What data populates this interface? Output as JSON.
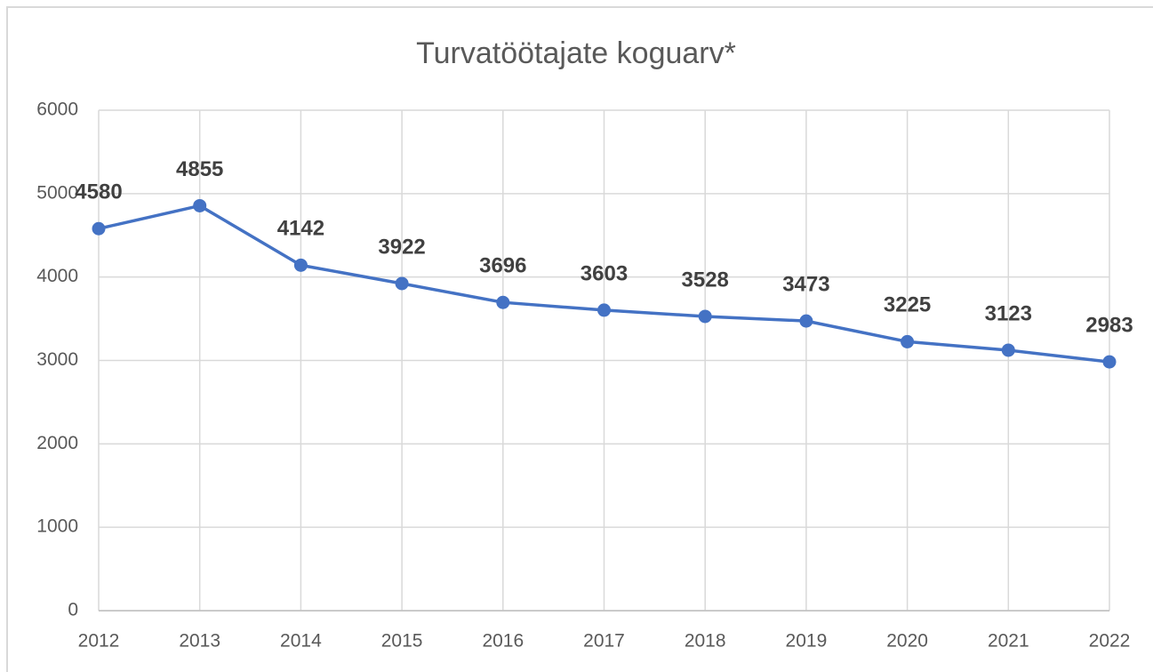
{
  "chart_data": {
    "type": "line",
    "title": "Turvatöötajate koguarv*",
    "categories": [
      "2012",
      "2013",
      "2014",
      "2015",
      "2016",
      "2017",
      "2018",
      "2019",
      "2020",
      "2021",
      "2022"
    ],
    "values": [
      4580,
      4855,
      4142,
      3922,
      3696,
      3603,
      3528,
      3473,
      3225,
      3123,
      2983
    ],
    "color": "#4472c4",
    "ylim": [
      0,
      6000
    ],
    "yticks": [
      0,
      1000,
      2000,
      3000,
      4000,
      5000,
      6000
    ],
    "grid": true
  }
}
